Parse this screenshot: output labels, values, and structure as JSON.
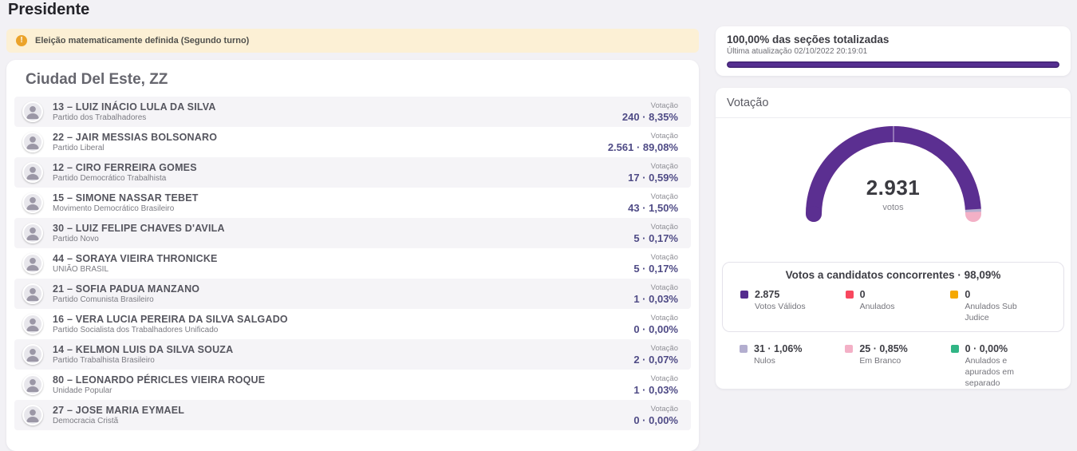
{
  "page": {
    "title": "Presidente"
  },
  "alert": {
    "icon": "warning-icon",
    "icon_glyph": "!",
    "text": "Eleição matematicamente definida (Segundo turno)"
  },
  "results": {
    "title": "Ciudad Del Este, ZZ",
    "vote_label": "Votação",
    "candidates": [
      {
        "name": "13 – LUIZ INÁCIO LULA DA SILVA",
        "party": "Partido dos Trabalhadores",
        "votes": "240 · 8,35%"
      },
      {
        "name": "22 – JAIR MESSIAS BOLSONARO",
        "party": "Partido Liberal",
        "votes": "2.561 · 89,08%"
      },
      {
        "name": "12 – CIRO FERREIRA GOMES",
        "party": "Partido Democrático Trabalhista",
        "votes": "17 · 0,59%"
      },
      {
        "name": "15 – SIMONE NASSAR TEBET",
        "party": "Movimento Democrático Brasileiro",
        "votes": "43 · 1,50%"
      },
      {
        "name": "30 – LUIZ FELIPE CHAVES D'AVILA",
        "party": "Partido Novo",
        "votes": "5 · 0,17%"
      },
      {
        "name": "44 – SORAYA VIEIRA THRONICKE",
        "party": "UNIÃO BRASIL",
        "votes": "5 · 0,17%"
      },
      {
        "name": "21 – SOFIA PADUA MANZANO",
        "party": "Partido Comunista Brasileiro",
        "votes": "1 · 0,03%"
      },
      {
        "name": "16 – VERA LUCIA PEREIRA DA SILVA SALGADO",
        "party": "Partido Socialista dos Trabalhadores Unificado",
        "votes": "0 · 0,00%"
      },
      {
        "name": "14 – KELMON LUIS DA SILVA SOUZA",
        "party": "Partido Trabalhista Brasileiro",
        "votes": "2 · 0,07%"
      },
      {
        "name": "80 – LEONARDO PÉRICLES VIEIRA ROQUE",
        "party": "Unidade Popular",
        "votes": "1 · 0,03%"
      },
      {
        "name": "27 – JOSE MARIA EYMAEL",
        "party": "Democracia Cristã",
        "votes": "0 · 0,00%"
      }
    ]
  },
  "totalization": {
    "title": "100,00% das seções totalizadas",
    "updated": "Última atualização 02/10/2022 20:19:01",
    "progress_percent": 100,
    "bar_color": "#563091"
  },
  "votacao": {
    "title": "Votação",
    "total_votes": "2.931",
    "total_label": "votos",
    "summary_title": "Votos a candidatos concorrentes · 98,09%",
    "legend_primary": [
      {
        "value": "2.875",
        "label": "Votos Válidos",
        "color": "#542b8d"
      },
      {
        "value": "0",
        "label": "Anulados",
        "color": "#f8475e"
      },
      {
        "value": "0",
        "label": "Anulados Sub Judice",
        "color": "#f5a800"
      }
    ],
    "legend_secondary": [
      {
        "value": "31 · 1,06%",
        "label": "Nulos",
        "color": "#b3aecf"
      },
      {
        "value": "25 · 0,85%",
        "label": "Em Branco",
        "color": "#f3b0c6"
      },
      {
        "value": "0 · 0,00%",
        "label": "Anulados e apurados em separado",
        "color": "#31b585"
      }
    ]
  },
  "chart_data": {
    "type": "gauge",
    "title": "Votação",
    "center_value": 2931,
    "center_label": "votos",
    "span_degrees": 180,
    "segments": [
      {
        "label": "Votos Válidos",
        "value": 2875,
        "percent": 98.09,
        "color": "#5b2f91"
      },
      {
        "label": "Anulados",
        "value": 0,
        "percent": 0.0,
        "color": "#f8475e"
      },
      {
        "label": "Anulados Sub Judice",
        "value": 0,
        "percent": 0.0,
        "color": "#f5a800"
      },
      {
        "label": "Nulos",
        "value": 31,
        "percent": 1.06,
        "color": "#b3aecf"
      },
      {
        "label": "Em Branco",
        "value": 25,
        "percent": 0.85,
        "color": "#f3b0c6"
      },
      {
        "label": "Anulados e apurados em separado",
        "value": 0,
        "percent": 0.0,
        "color": "#31b585"
      }
    ]
  }
}
